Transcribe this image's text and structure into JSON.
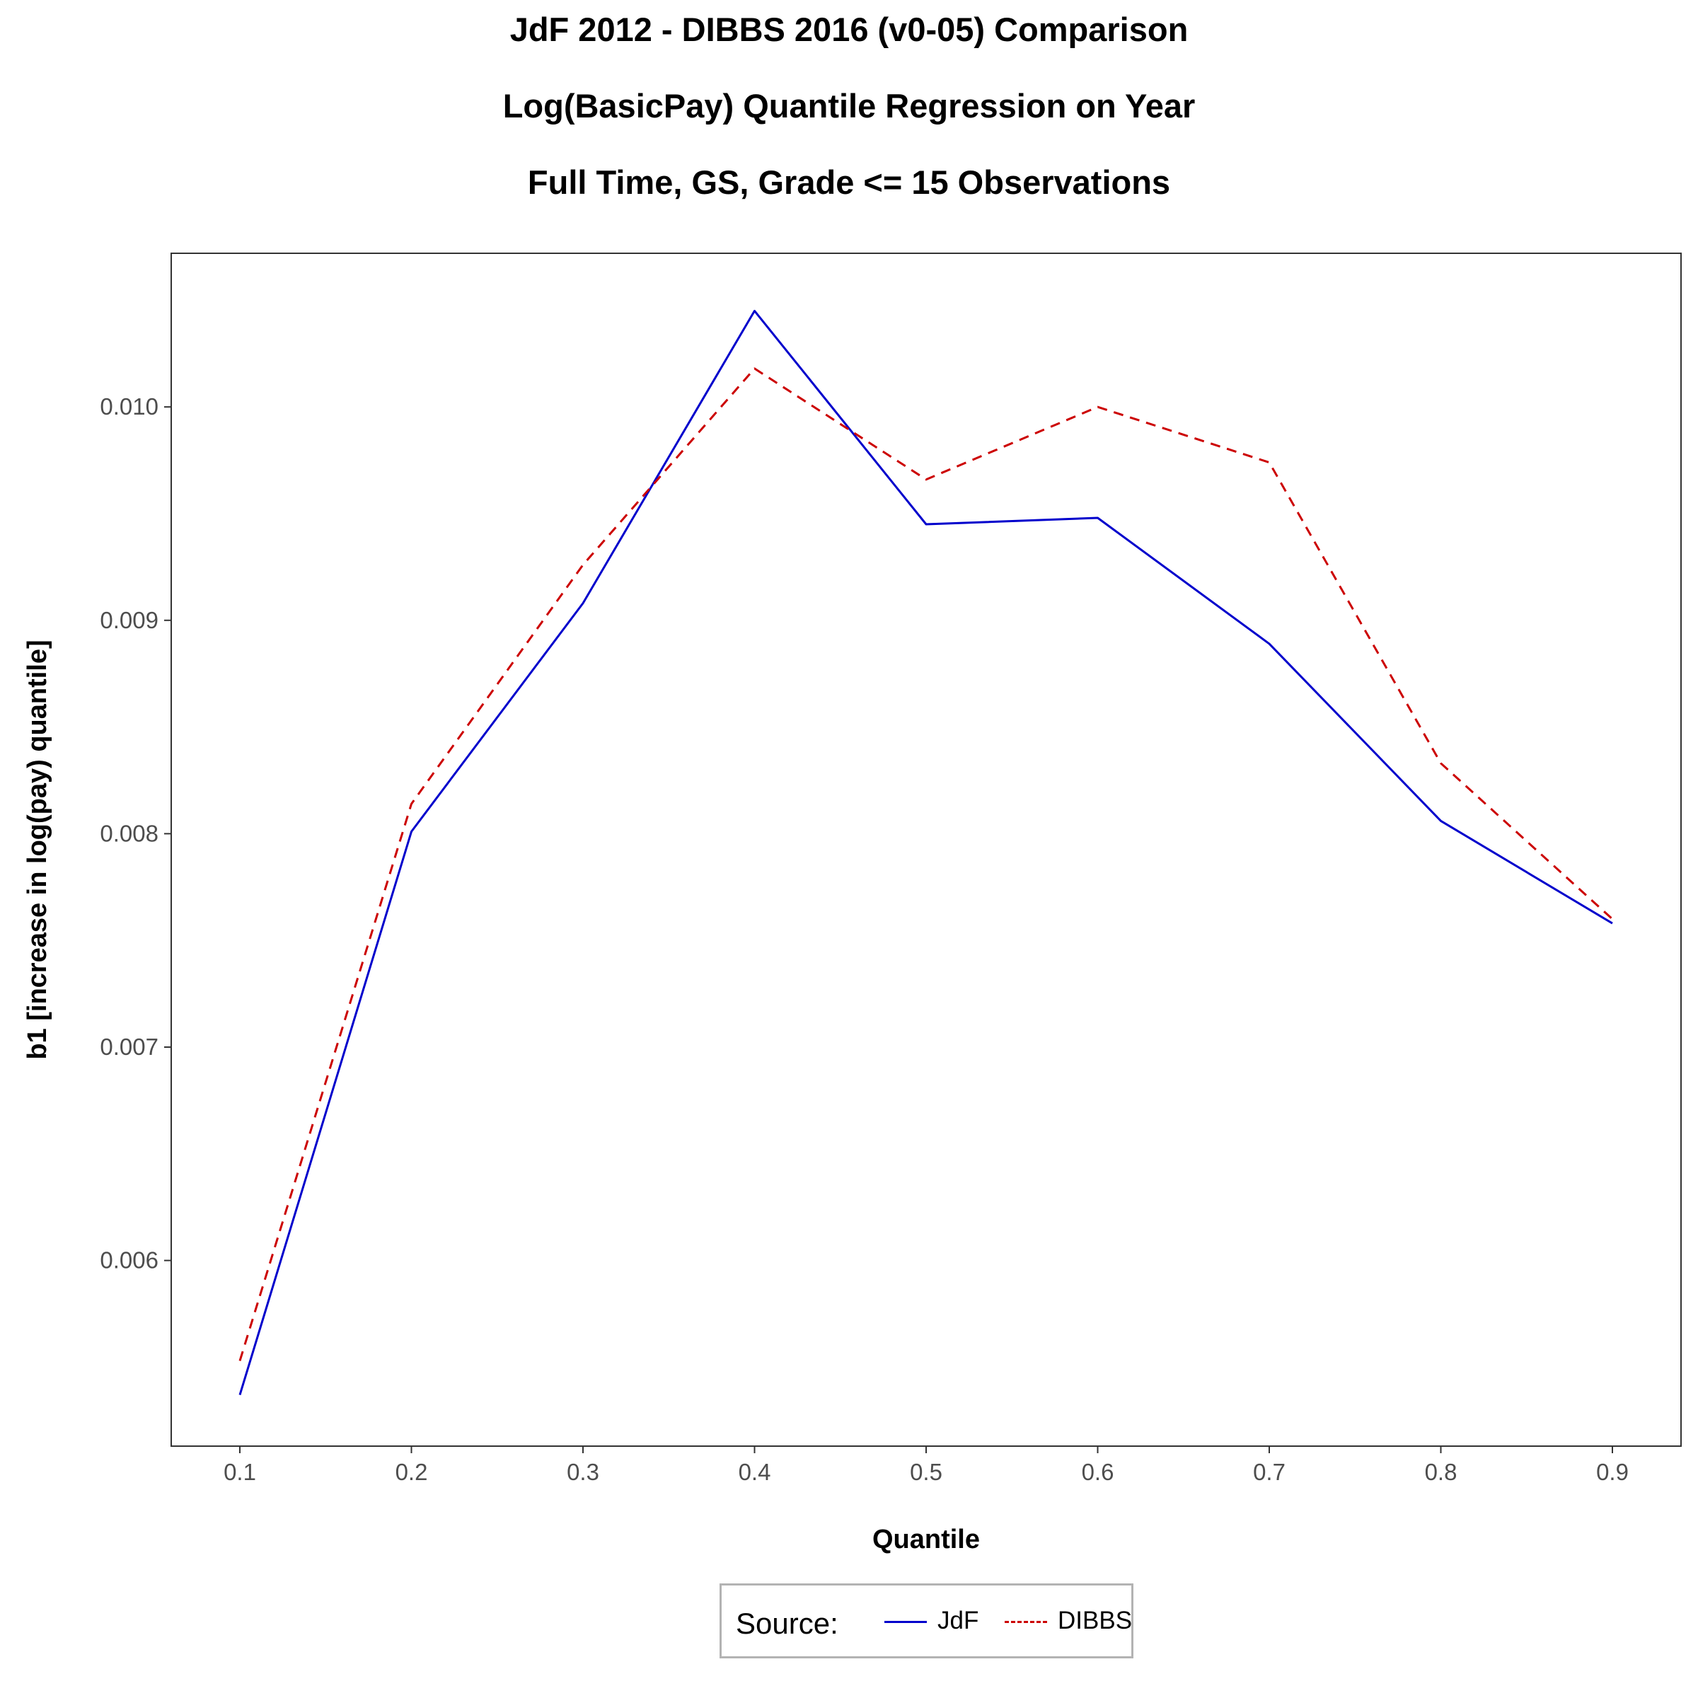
{
  "chart_data": {
    "type": "line",
    "title": "JdF 2012 - DIBBS 2016 (v0-05) Comparison",
    "subtitle_1": "Log(BasicPay) Quantile Regression on Year",
    "subtitle_2": "Full Time, GS, Grade <= 15 Observations",
    "xlabel": "Quantile",
    "ylabel": "b1 [increase in log(pay) quantile]",
    "x": [
      0.1,
      0.2,
      0.3,
      0.4,
      0.5,
      0.6,
      0.7,
      0.8,
      0.9
    ],
    "x_tick_labels": [
      "0.1",
      "0.2",
      "0.3",
      "0.4",
      "0.5",
      "0.6",
      "0.7",
      "0.8",
      "0.9"
    ],
    "y_ticks": [
      0.006,
      0.007,
      0.008,
      0.009,
      0.01
    ],
    "y_tick_labels": [
      "0.006",
      "0.007",
      "0.008",
      "0.009",
      "0.010"
    ],
    "xlim": [
      0.06,
      0.94
    ],
    "ylim": [
      0.00513,
      0.01072
    ],
    "grid": false,
    "legend": {
      "title": "Source:",
      "placement": "bottom",
      "entries": [
        "JdF",
        "DIBBS"
      ]
    },
    "series": [
      {
        "name": "JdF",
        "color": "#0000cc",
        "dash": "solid",
        "values": [
          0.00537,
          0.00801,
          0.00908,
          0.01045,
          0.00945,
          0.00948,
          0.00889,
          0.00806,
          0.00758
        ]
      },
      {
        "name": "DIBBS",
        "color": "#cc0000",
        "dash": "dashed",
        "values": [
          0.00553,
          0.00814,
          0.00926,
          0.01018,
          0.00966,
          0.01,
          0.00974,
          0.00833,
          0.0076
        ]
      }
    ]
  }
}
